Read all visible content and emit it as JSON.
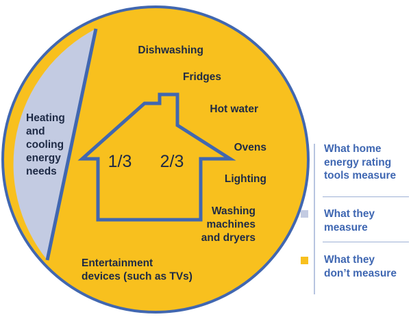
{
  "chart_data": {
    "type": "pie",
    "slices": [
      {
        "label": "What they measure",
        "fraction_text": "1/3",
        "value": 33.3,
        "color": "#c3cbe2"
      },
      {
        "label": "What they don’t measure",
        "fraction_text": "2/3",
        "value": 66.7,
        "color": "#f8c01e"
      }
    ],
    "measured_items": [
      "Heating",
      "and",
      "cooling",
      "energy",
      "needs"
    ],
    "unmeasured_items": [
      [
        "Dishwashing"
      ],
      [
        "Fridges"
      ],
      [
        "Hot water"
      ],
      [
        "Ovens"
      ],
      [
        "Lighting"
      ],
      [
        "Washing",
        "machines",
        "and dryers"
      ],
      [
        "Entertainment",
        "devices (such as TVs)"
      ]
    ],
    "legend": {
      "title_lines": [
        "What home",
        "energy rating",
        "tools measure"
      ],
      "items": [
        {
          "lines": [
            "What they",
            "measure"
          ],
          "color": "#c3cbe2"
        },
        {
          "lines": [
            "What they",
            "don’t measure"
          ],
          "color": "#f8c01e"
        }
      ]
    },
    "outline_color": "#4167b0",
    "text_color": "#1e2a45"
  }
}
